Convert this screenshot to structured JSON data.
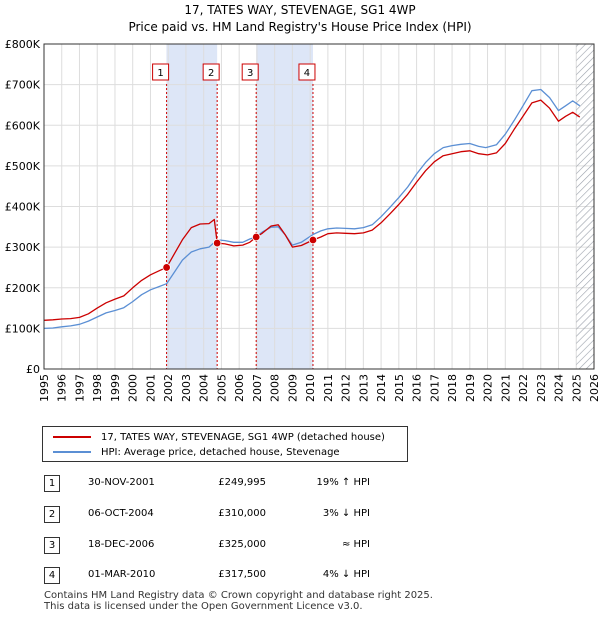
{
  "title_line1": "17, TATES WAY, STEVENAGE, SG1 4WP",
  "title_line2": "Price paid vs. HM Land Registry's House Price Index (HPI)",
  "colors": {
    "property": "#cc0000",
    "hpi": "#5b8fd4",
    "shade": "#dde6f7",
    "grid": "#dddddd",
    "hatch": "#9aa0aa"
  },
  "legend": {
    "property_label": "17, TATES WAY, STEVENAGE, SG1 4WP (detached house)",
    "hpi_label": "HPI: Average price, detached house, Stevenage"
  },
  "transactions": [
    {
      "num": "1",
      "date": "30-NOV-2001",
      "price": "£249,995",
      "hpi": "19% ↑ HPI"
    },
    {
      "num": "2",
      "date": "06-OCT-2004",
      "price": "£310,000",
      "hpi": "3% ↓ HPI"
    },
    {
      "num": "3",
      "date": "18-DEC-2006",
      "price": "£325,000",
      "hpi": "≈ HPI"
    },
    {
      "num": "4",
      "date": "01-MAR-2010",
      "price": "£317,500",
      "hpi": "4% ↓ HPI"
    }
  ],
  "footer": {
    "line1": "Contains HM Land Registry data © Crown copyright and database right 2025.",
    "line2": "This data is licensed under the Open Government Licence v3.0."
  },
  "chart_data": {
    "type": "line",
    "title": "Price paid vs. HM Land Registry's House Price Index (HPI)",
    "xlim": [
      1995,
      2026
    ],
    "ylim": [
      0,
      800000
    ],
    "x_ticks": [
      1995,
      1996,
      1997,
      1998,
      1999,
      2000,
      2001,
      2002,
      2003,
      2004,
      2005,
      2006,
      2007,
      2008,
      2009,
      2010,
      2011,
      2012,
      2013,
      2014,
      2015,
      2016,
      2017,
      2018,
      2019,
      2020,
      2021,
      2022,
      2023,
      2024,
      2025,
      2026
    ],
    "y_ticks": [
      {
        "value": 0,
        "label": "£0"
      },
      {
        "value": 100000,
        "label": "£100K"
      },
      {
        "value": 200000,
        "label": "£200K"
      },
      {
        "value": 300000,
        "label": "£300K"
      },
      {
        "value": 400000,
        "label": "£400K"
      },
      {
        "value": 500000,
        "label": "£500K"
      },
      {
        "value": 600000,
        "label": "£600K"
      },
      {
        "value": 700000,
        "label": "£700K"
      },
      {
        "value": 800000,
        "label": "£800K"
      }
    ],
    "shaded_ranges": [
      [
        2001.9,
        2004.76
      ],
      [
        2006.96,
        2010.16
      ]
    ],
    "forecast_from": 2025.0,
    "markers": [
      {
        "label": "1",
        "x": 2001.91,
        "y": 249995
      },
      {
        "label": "2",
        "x": 2004.76,
        "y": 310000
      },
      {
        "label": "3",
        "x": 2006.96,
        "y": 325000
      },
      {
        "label": "4",
        "x": 2010.16,
        "y": 317500
      }
    ],
    "series": [
      {
        "name": "17, TATES WAY, STEVENAGE, SG1 4WP (detached house)",
        "color": "#cc0000",
        "points": [
          [
            1995.0,
            120000
          ],
          [
            1995.5,
            121000
          ],
          [
            1996.0,
            123000
          ],
          [
            1996.5,
            124000
          ],
          [
            1997.0,
            127000
          ],
          [
            1997.5,
            136000
          ],
          [
            1998.0,
            150000
          ],
          [
            1998.5,
            163000
          ],
          [
            1999.0,
            172000
          ],
          [
            1999.5,
            180000
          ],
          [
            2000.0,
            200000
          ],
          [
            2000.5,
            218000
          ],
          [
            2001.0,
            232000
          ],
          [
            2001.5,
            242000
          ],
          [
            2001.91,
            249995
          ],
          [
            2002.3,
            280000
          ],
          [
            2002.8,
            318000
          ],
          [
            2003.3,
            348000
          ],
          [
            2003.8,
            357000
          ],
          [
            2004.3,
            358000
          ],
          [
            2004.6,
            368000
          ],
          [
            2004.76,
            310000
          ],
          [
            2005.2,
            308000
          ],
          [
            2005.7,
            303000
          ],
          [
            2006.2,
            305000
          ],
          [
            2006.6,
            312000
          ],
          [
            2006.96,
            325000
          ],
          [
            2007.3,
            334000
          ],
          [
            2007.8,
            352000
          ],
          [
            2008.2,
            355000
          ],
          [
            2008.6,
            330000
          ],
          [
            2009.0,
            300000
          ],
          [
            2009.5,
            304000
          ],
          [
            2010.16,
            317500
          ],
          [
            2010.6,
            325000
          ],
          [
            2011.0,
            333000
          ],
          [
            2011.5,
            335000
          ],
          [
            2012.0,
            334000
          ],
          [
            2012.5,
            333000
          ],
          [
            2013.0,
            335000
          ],
          [
            2013.5,
            342000
          ],
          [
            2014.0,
            360000
          ],
          [
            2014.5,
            382000
          ],
          [
            2015.0,
            405000
          ],
          [
            2015.5,
            430000
          ],
          [
            2016.0,
            460000
          ],
          [
            2016.5,
            488000
          ],
          [
            2017.0,
            510000
          ],
          [
            2017.5,
            525000
          ],
          [
            2018.0,
            530000
          ],
          [
            2018.5,
            535000
          ],
          [
            2019.0,
            537000
          ],
          [
            2019.5,
            530000
          ],
          [
            2020.0,
            527000
          ],
          [
            2020.5,
            532000
          ],
          [
            2021.0,
            555000
          ],
          [
            2021.5,
            590000
          ],
          [
            2022.0,
            622000
          ],
          [
            2022.5,
            655000
          ],
          [
            2023.0,
            662000
          ],
          [
            2023.5,
            642000
          ],
          [
            2024.0,
            610000
          ],
          [
            2024.4,
            622000
          ],
          [
            2024.8,
            632000
          ],
          [
            2025.2,
            620000
          ]
        ]
      },
      {
        "name": "HPI: Average price, detached house, Stevenage",
        "color": "#5b8fd4",
        "points": [
          [
            1995.0,
            100000
          ],
          [
            1995.5,
            101000
          ],
          [
            1996.0,
            104000
          ],
          [
            1996.5,
            106000
          ],
          [
            1997.0,
            110000
          ],
          [
            1997.5,
            118000
          ],
          [
            1998.0,
            128000
          ],
          [
            1998.5,
            138000
          ],
          [
            1999.0,
            144000
          ],
          [
            1999.5,
            151000
          ],
          [
            2000.0,
            166000
          ],
          [
            2000.5,
            183000
          ],
          [
            2001.0,
            195000
          ],
          [
            2001.5,
            203000
          ],
          [
            2001.91,
            210000
          ],
          [
            2002.3,
            235000
          ],
          [
            2002.8,
            268000
          ],
          [
            2003.3,
            288000
          ],
          [
            2003.8,
            296000
          ],
          [
            2004.3,
            300000
          ],
          [
            2004.76,
            318000
          ],
          [
            2005.2,
            316000
          ],
          [
            2005.7,
            312000
          ],
          [
            2006.2,
            312000
          ],
          [
            2006.6,
            320000
          ],
          [
            2006.96,
            325000
          ],
          [
            2007.3,
            337000
          ],
          [
            2007.8,
            349000
          ],
          [
            2008.2,
            350000
          ],
          [
            2008.6,
            330000
          ],
          [
            2009.0,
            305000
          ],
          [
            2009.5,
            312000
          ],
          [
            2010.16,
            331000
          ],
          [
            2010.6,
            340000
          ],
          [
            2011.0,
            345000
          ],
          [
            2011.5,
            347000
          ],
          [
            2012.0,
            346000
          ],
          [
            2012.5,
            345000
          ],
          [
            2013.0,
            348000
          ],
          [
            2013.5,
            355000
          ],
          [
            2014.0,
            375000
          ],
          [
            2014.5,
            398000
          ],
          [
            2015.0,
            422000
          ],
          [
            2015.5,
            448000
          ],
          [
            2016.0,
            480000
          ],
          [
            2016.5,
            508000
          ],
          [
            2017.0,
            530000
          ],
          [
            2017.5,
            545000
          ],
          [
            2018.0,
            550000
          ],
          [
            2018.5,
            553000
          ],
          [
            2019.0,
            555000
          ],
          [
            2019.5,
            548000
          ],
          [
            2019.9,
            545000
          ],
          [
            2020.5,
            552000
          ],
          [
            2021.0,
            578000
          ],
          [
            2021.5,
            612000
          ],
          [
            2022.0,
            648000
          ],
          [
            2022.5,
            685000
          ],
          [
            2023.0,
            688000
          ],
          [
            2023.5,
            668000
          ],
          [
            2024.0,
            636000
          ],
          [
            2024.4,
            648000
          ],
          [
            2024.8,
            660000
          ],
          [
            2025.2,
            648000
          ]
        ]
      }
    ]
  }
}
